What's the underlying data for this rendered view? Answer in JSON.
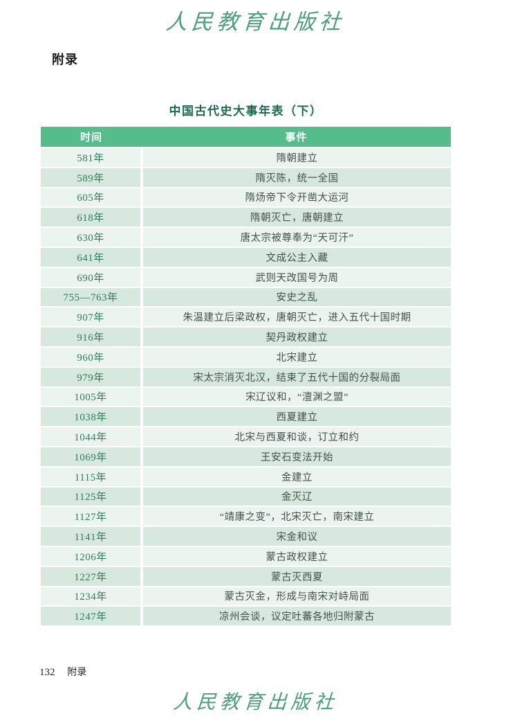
{
  "page": {
    "publisher_logo": "人民教育出版社",
    "appendix_label": "附录",
    "footer": {
      "page_number": "132",
      "section_label": "附录"
    }
  },
  "table": {
    "title": "中国古代史大事年表（下）",
    "columns": [
      "时间",
      "事件"
    ],
    "rows": [
      {
        "time": "581年",
        "event": "隋朝建立"
      },
      {
        "time": "589年",
        "event": "隋灭陈，统一全国"
      },
      {
        "time": "605年",
        "event": "隋炀帝下令开凿大运河"
      },
      {
        "time": "618年",
        "event": "隋朝灭亡，唐朝建立"
      },
      {
        "time": "630年",
        "event": "唐太宗被尊奉为“天可汗”"
      },
      {
        "time": "641年",
        "event": "文成公主入藏"
      },
      {
        "time": "690年",
        "event": "武则天改国号为周"
      },
      {
        "time": "755—763年",
        "event": "安史之乱"
      },
      {
        "time": "907年",
        "event": "朱温建立后梁政权，唐朝灭亡，进入五代十国时期"
      },
      {
        "time": "916年",
        "event": "契丹政权建立"
      },
      {
        "time": "960年",
        "event": "北宋建立"
      },
      {
        "time": "979年",
        "event": "宋太宗消灭北汉，结束了五代十国的分裂局面"
      },
      {
        "time": "1005年",
        "event": "宋辽议和，“澶渊之盟”"
      },
      {
        "time": "1038年",
        "event": "西夏建立"
      },
      {
        "time": "1044年",
        "event": "北宋与西夏和谈，订立和约"
      },
      {
        "time": "1069年",
        "event": "王安石变法开始"
      },
      {
        "time": "1115年",
        "event": "金建立"
      },
      {
        "time": "1125年",
        "event": "金灭辽"
      },
      {
        "time": "1127年",
        "event": "“靖康之变”，北宋灭亡，南宋建立"
      },
      {
        "time": "1141年",
        "event": "宋金和议"
      },
      {
        "time": "1206年",
        "event": "蒙古政权建立"
      },
      {
        "time": "1227年",
        "event": "蒙古灭西夏"
      },
      {
        "time": "1234年",
        "event": "蒙古灭金，形成与南宋对峙局面"
      },
      {
        "time": "1247年",
        "event": "凉州会谈，议定吐蕃各地归附蒙古"
      }
    ]
  },
  "colors": {
    "header_green": "#56bc8b",
    "row_light": "#ebf4ef",
    "row_dark": "#d7e8de",
    "time_text_green": "#2e7d5b",
    "event_text": "#44514a",
    "title_green": "#1c6b50",
    "logo_green": "#4d9e7c"
  }
}
